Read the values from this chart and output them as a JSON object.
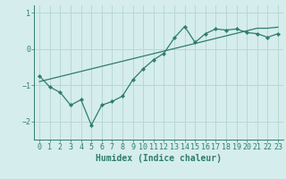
{
  "xlabel": "Humidex (Indice chaleur)",
  "bg_color": "#d5edec",
  "grid_color": "#b8d8d5",
  "line_color": "#2e7d6e",
  "x_data": [
    0,
    1,
    2,
    3,
    4,
    5,
    6,
    7,
    8,
    9,
    10,
    11,
    12,
    13,
    14,
    15,
    16,
    17,
    18,
    19,
    20,
    21,
    22,
    23
  ],
  "y_zigzag": [
    -0.75,
    -1.05,
    -1.2,
    -1.55,
    -1.4,
    -2.1,
    -1.55,
    -1.45,
    -1.3,
    -0.85,
    -0.55,
    -0.3,
    -0.12,
    0.3,
    0.62,
    0.18,
    0.42,
    0.55,
    0.52,
    0.55,
    0.45,
    0.42,
    0.32,
    0.42
  ],
  "y_trend": [
    -0.9,
    -0.83,
    -0.76,
    -0.69,
    -0.62,
    -0.55,
    -0.48,
    -0.41,
    -0.34,
    -0.27,
    -0.2,
    -0.13,
    -0.06,
    0.01,
    0.08,
    0.15,
    0.22,
    0.29,
    0.36,
    0.43,
    0.5,
    0.57,
    0.57,
    0.6
  ],
  "ylim": [
    -2.5,
    1.2
  ],
  "yticks": [
    -2,
    -1,
    0,
    1
  ],
  "xticks": [
    0,
    1,
    2,
    3,
    4,
    5,
    6,
    7,
    8,
    9,
    10,
    11,
    12,
    13,
    14,
    15,
    16,
    17,
    18,
    19,
    20,
    21,
    22,
    23
  ],
  "xlabel_fontsize": 7,
  "tick_fontsize": 6
}
